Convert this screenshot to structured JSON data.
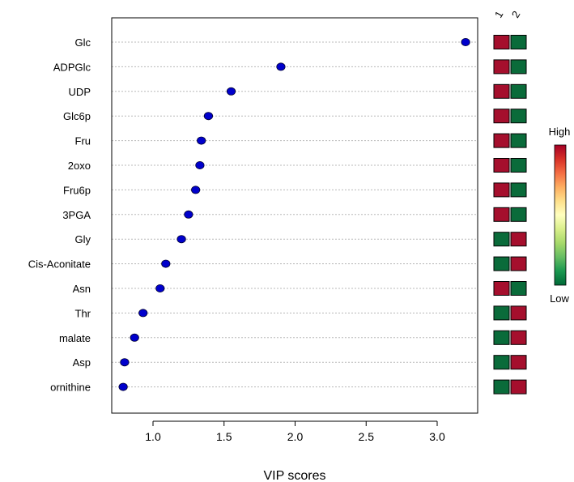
{
  "chart_data": {
    "type": "scatter",
    "title": "",
    "xlabel": "VIP scores",
    "ylabel": "",
    "xlim": [
      0.72,
      3.32
    ],
    "xticks": [
      1.0,
      1.5,
      2.0,
      2.5,
      3.0
    ],
    "xtick_labels": [
      "1.0",
      "1.5",
      "2.0",
      "2.5",
      "3.0"
    ],
    "grid": "horizontal dotted",
    "point_color": "#0000cc",
    "items": [
      {
        "name": "Glc",
        "vip": 3.2,
        "heat": [
          "high",
          "low"
        ]
      },
      {
        "name": "ADPGlc",
        "vip": 1.9,
        "heat": [
          "high",
          "low"
        ]
      },
      {
        "name": "UDP",
        "vip": 1.55,
        "heat": [
          "high",
          "low"
        ]
      },
      {
        "name": "Glc6p",
        "vip": 1.39,
        "heat": [
          "high",
          "low"
        ]
      },
      {
        "name": "Fru",
        "vip": 1.34,
        "heat": [
          "high",
          "low"
        ]
      },
      {
        "name": "2oxo",
        "vip": 1.33,
        "heat": [
          "high",
          "low"
        ]
      },
      {
        "name": "Fru6p",
        "vip": 1.3,
        "heat": [
          "high",
          "low"
        ]
      },
      {
        "name": "3PGA",
        "vip": 1.25,
        "heat": [
          "high",
          "low"
        ]
      },
      {
        "name": "Gly",
        "vip": 1.2,
        "heat": [
          "low",
          "high"
        ]
      },
      {
        "name": "Cis-Aconitate",
        "vip": 1.09,
        "heat": [
          "low",
          "high"
        ]
      },
      {
        "name": "Asn",
        "vip": 1.05,
        "heat": [
          "high",
          "low"
        ]
      },
      {
        "name": "Thr",
        "vip": 0.93,
        "heat": [
          "low",
          "high"
        ]
      },
      {
        "name": "malate",
        "vip": 0.87,
        "heat": [
          "low",
          "high"
        ]
      },
      {
        "name": "Asp",
        "vip": 0.8,
        "heat": [
          "low",
          "high"
        ]
      },
      {
        "name": "ornithine",
        "vip": 0.79,
        "heat": [
          "low",
          "high"
        ]
      }
    ],
    "heatmap": {
      "columns": [
        "1",
        "2"
      ],
      "colors": {
        "high": "#a50f2d",
        "low": "#0a6b3a"
      }
    },
    "legend": {
      "high_label": "High",
      "low_label": "Low",
      "position": "right",
      "gradient": [
        "#a50026",
        "#d73027",
        "#f46d43",
        "#fdae61",
        "#fee08b",
        "#ffffbf",
        "#d9ef8b",
        "#a6d96a",
        "#66bd63",
        "#1a9850",
        "#006837"
      ]
    }
  }
}
